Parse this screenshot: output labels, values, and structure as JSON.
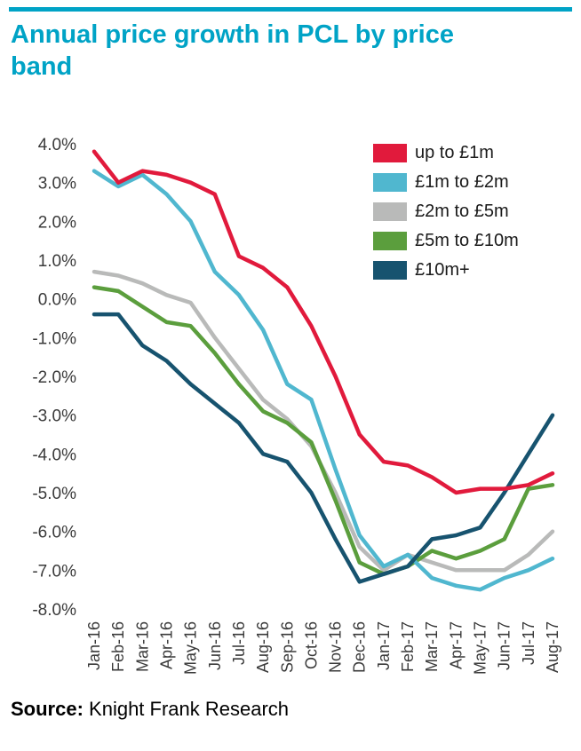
{
  "page": {
    "title": "Annual price growth in PCL by price band",
    "source_label": "Source:",
    "source_text": " Knight Frank Research",
    "accent_color": "#00a3c6"
  },
  "chart_data": {
    "type": "line",
    "title": "Annual price growth in PCL by price band",
    "xlabel": "",
    "ylabel": "",
    "ylim": [
      -8,
      4
    ],
    "ytick_step": 1,
    "ytick_format": "0.0%",
    "grid": false,
    "legend_position": "top-right-inside",
    "categories": [
      "Jan-16",
      "Feb-16",
      "Mar-16",
      "Apr-16",
      "May-16",
      "Jun-16",
      "Jul-16",
      "Aug-16",
      "Sep-16",
      "Oct-16",
      "Nov-16",
      "Dec-16",
      "Jan-17",
      "Feb-17",
      "Mar-17",
      "Apr-17",
      "May-17",
      "Jun-17",
      "Jul-17",
      "Aug-17"
    ],
    "series": [
      {
        "name": "up to £1m",
        "color": "#e11a3c",
        "values": [
          3.8,
          3.0,
          3.3,
          3.2,
          3.0,
          2.7,
          1.1,
          0.8,
          0.3,
          -0.7,
          -2.0,
          -3.5,
          -4.2,
          -4.3,
          -4.6,
          -5.0,
          -4.9,
          -4.9,
          -4.8,
          -4.5
        ]
      },
      {
        "name": "£1m to £2m",
        "color": "#50b7cf",
        "values": [
          3.3,
          2.9,
          3.2,
          2.7,
          2.0,
          0.7,
          0.1,
          -0.8,
          -2.2,
          -2.6,
          -4.4,
          -6.1,
          -6.9,
          -6.6,
          -7.2,
          -7.4,
          -7.5,
          -7.2,
          -7.0,
          -6.7
        ]
      },
      {
        "name": "£2m to £5m",
        "color": "#b9bab9",
        "values": [
          0.7,
          0.6,
          0.4,
          0.1,
          -0.1,
          -1.0,
          -1.8,
          -2.6,
          -3.1,
          -3.8,
          -5.0,
          -6.4,
          -7.0,
          -6.6,
          -6.8,
          -7.0,
          -7.0,
          -7.0,
          -6.6,
          -6.0
        ]
      },
      {
        "name": "£5m to £10m",
        "color": "#5b9e3d",
        "values": [
          0.3,
          0.2,
          -0.2,
          -0.6,
          -0.7,
          -1.4,
          -2.2,
          -2.9,
          -3.2,
          -3.7,
          -5.2,
          -6.8,
          -7.1,
          -6.9,
          -6.5,
          -6.7,
          -6.5,
          -6.2,
          -4.9,
          -4.8
        ]
      },
      {
        "name": "£10m+",
        "color": "#17536f",
        "values": [
          -0.4,
          -0.4,
          -1.2,
          -1.6,
          -2.2,
          -2.7,
          -3.2,
          -4.0,
          -4.2,
          -5.0,
          -6.2,
          -7.3,
          -7.1,
          -6.9,
          -6.2,
          -6.1,
          -5.9,
          -5.0,
          -4.0,
          -3.0
        ]
      }
    ],
    "draw_order": [
      2,
      3,
      1,
      4,
      0
    ]
  }
}
